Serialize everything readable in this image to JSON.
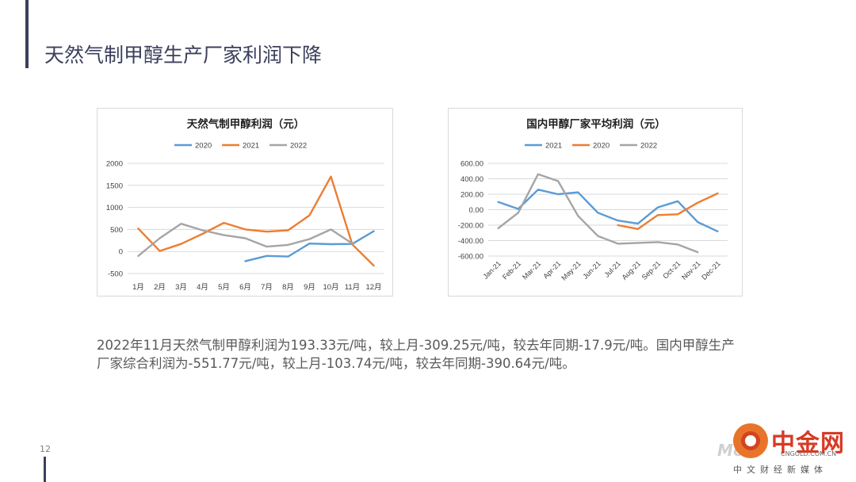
{
  "slide": {
    "title": "天然气制甲醇生产厂家利润下降",
    "summary": "2022年11月天然气制甲醇利润为193.33元/吨，较上月-309.25元/吨，较去年同期-17.9元/吨。国内甲醇生产厂家综合利润为-551.77元/吨，较上月-103.74元/吨，较去年同期-390.64元/吨。",
    "page_number": "12"
  },
  "watermark": {
    "logo": "中金网",
    "site": "CNGOLD.COM.CN",
    "tagline": "中文财经新媒体",
    "ghost": "Mo"
  },
  "chart_data": [
    {
      "type": "line",
      "title": "天然气制甲醇利润（元）",
      "categories": [
        "1月",
        "2月",
        "3月",
        "4月",
        "5月",
        "6月",
        "7月",
        "8月",
        "9月",
        "10月",
        "11月",
        "12月"
      ],
      "series": [
        {
          "name": "2020",
          "color": "#5b9bd5",
          "values": [
            null,
            null,
            null,
            null,
            null,
            -220,
            -100,
            -115,
            180,
            165,
            170,
            460
          ]
        },
        {
          "name": "2021",
          "color": "#ed7d31",
          "values": [
            520,
            10,
            170,
            400,
            650,
            500,
            450,
            480,
            820,
            1700,
            160,
            -320
          ]
        },
        {
          "name": "2022",
          "color": "#a5a5a5",
          "values": [
            -100,
            300,
            630,
            480,
            370,
            300,
            110,
            150,
            280,
            500,
            180,
            null
          ]
        }
      ],
      "yticks": [
        "2000",
        "1500",
        "1000",
        "500",
        "0",
        "-500"
      ],
      "ylim": [
        -500,
        2000
      ],
      "legend": "top",
      "grid": true
    },
    {
      "type": "line",
      "title": "国内甲醇厂家平均利润（元）",
      "categories": [
        "Jan-21",
        "Feb-21",
        "Mar-21",
        "Apr-21",
        "May-21",
        "Jun-21",
        "Jul-21",
        "Aug-21",
        "Sep-21",
        "Oct-21",
        "Nov-21",
        "Dec-21"
      ],
      "series": [
        {
          "name": "2021",
          "color": "#5b9bd5",
          "values": [
            100,
            10,
            260,
            200,
            225,
            -40,
            -140,
            -180,
            30,
            110,
            -160,
            -280
          ]
        },
        {
          "name": "2020",
          "color": "#ed7d31",
          "values": [
            null,
            null,
            null,
            null,
            null,
            null,
            -200,
            -250,
            -70,
            -60,
            90,
            210
          ]
        },
        {
          "name": "2022",
          "color": "#a5a5a5",
          "values": [
            -240,
            -40,
            460,
            370,
            -80,
            -340,
            -440,
            -430,
            -420,
            -450,
            -550,
            null
          ]
        }
      ],
      "yticks": [
        "600.00",
        "400.00",
        "200.00",
        "0.00",
        "-200.00",
        "-400.00",
        "-600.00"
      ],
      "ylim": [
        -600,
        600
      ],
      "legend": "top",
      "grid": true
    }
  ]
}
